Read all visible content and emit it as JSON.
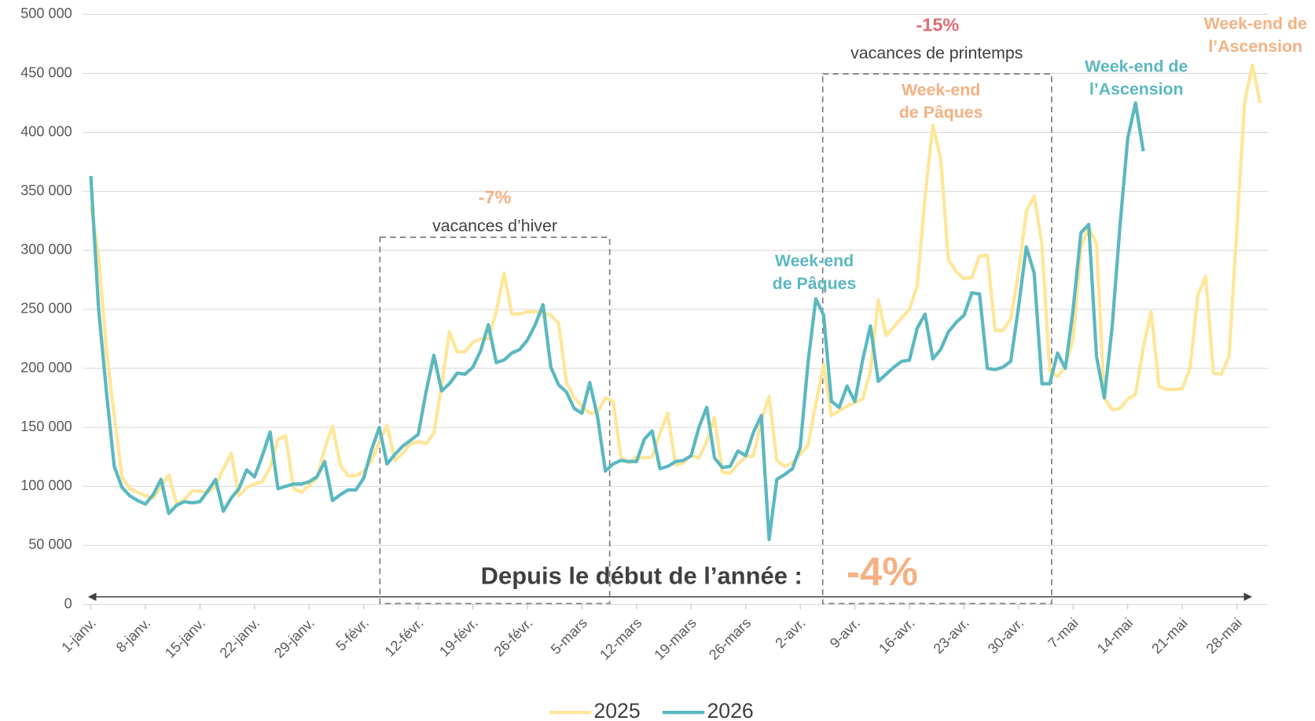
{
  "chart_data": {
    "type": "line",
    "xlim": [
      0,
      152
    ],
    "xticks": [
      {
        "value": 1,
        "label": "1-janv."
      },
      {
        "value": 8,
        "label": "8-janv."
      },
      {
        "value": 15,
        "label": "15-janv."
      },
      {
        "value": 22,
        "label": "22-janv."
      },
      {
        "value": 29,
        "label": "29-janv."
      },
      {
        "value": 36,
        "label": "5-févr."
      },
      {
        "value": 43,
        "label": "12-févr."
      },
      {
        "value": 50,
        "label": "19-févr."
      },
      {
        "value": 57,
        "label": "26-févr."
      },
      {
        "value": 64,
        "label": "5-mars"
      },
      {
        "value": 71,
        "label": "12-mars"
      },
      {
        "value": 78,
        "label": "19-mars"
      },
      {
        "value": 85,
        "label": "26-mars"
      },
      {
        "value": 92,
        "label": "2-avr."
      },
      {
        "value": 99,
        "label": "9-avr."
      },
      {
        "value": 106,
        "label": "16-avr."
      },
      {
        "value": 113,
        "label": "23-avr."
      },
      {
        "value": 120,
        "label": "30-avr."
      },
      {
        "value": 127,
        "label": "7-mai"
      },
      {
        "value": 134,
        "label": "14-mai"
      },
      {
        "value": 141,
        "label": "21-mai"
      },
      {
        "value": 148,
        "label": "28-mai"
      }
    ],
    "ylim": [
      0,
      500000
    ],
    "yticks": [
      {
        "value": 0,
        "label": "0"
      },
      {
        "value": 50000,
        "label": "50 000"
      },
      {
        "value": 100000,
        "label": "100 000"
      },
      {
        "value": 150000,
        "label": "150 000"
      },
      {
        "value": 200000,
        "label": "200 000"
      },
      {
        "value": 250000,
        "label": "250 000"
      },
      {
        "value": 300000,
        "label": "300 000"
      },
      {
        "value": 350000,
        "label": "350 000"
      },
      {
        "value": 400000,
        "label": "400 000"
      },
      {
        "value": 450000,
        "label": "450 000"
      },
      {
        "value": 500000,
        "label": "500 000"
      }
    ],
    "grid": true,
    "series": [
      {
        "name": "2025",
        "color": "#ffe699",
        "x": [
          1,
          2,
          3,
          4,
          5,
          6,
          7,
          8,
          9,
          10,
          11,
          12,
          13,
          14,
          15,
          16,
          17,
          18,
          19,
          20,
          21,
          22,
          23,
          24,
          25,
          26,
          27,
          28,
          29,
          30,
          31,
          32,
          33,
          34,
          35,
          36,
          37,
          38,
          39,
          40,
          41,
          42,
          43,
          44,
          45,
          46,
          47,
          48,
          49,
          50,
          51,
          52,
          53,
          54,
          55,
          56,
          57,
          58,
          59,
          60,
          61,
          62,
          63,
          64,
          65,
          66,
          67,
          68,
          69,
          70,
          71,
          72,
          73,
          74,
          75,
          76,
          77,
          78,
          79,
          80,
          81,
          82,
          83,
          84,
          85,
          86,
          87,
          88,
          89,
          90,
          91,
          92,
          93,
          94,
          95,
          96,
          97,
          98,
          99,
          100,
          101,
          102,
          103,
          104,
          105,
          106,
          107,
          108,
          109,
          110,
          111,
          112,
          113,
          114,
          115,
          116,
          117,
          118,
          119,
          120,
          121,
          122,
          123,
          124,
          125,
          126,
          127,
          128,
          129,
          130,
          131,
          132,
          133,
          134,
          135,
          136,
          137,
          138,
          139,
          140,
          141,
          142,
          143,
          144,
          145,
          146,
          147,
          148,
          149,
          150,
          151
        ],
        "values": [
          338000,
          295000,
          215000,
          160000,
          108000,
          98000,
          95000,
          92000,
          90000,
          100000,
          110000,
          85000,
          89000,
          96000,
          96000,
          95000,
          100000,
          115000,
          128000,
          92000,
          99000,
          102000,
          104000,
          116000,
          140000,
          143000,
          98000,
          95000,
          101000,
          107000,
          132000,
          151000,
          118000,
          109000,
          109000,
          113000,
          122000,
          137000,
          152000,
          122000,
          128000,
          136000,
          138000,
          136000,
          145000,
          186000,
          231000,
          214000,
          214000,
          222000,
          225000,
          225000,
          248000,
          281000,
          246000,
          246000,
          248000,
          248000,
          247000,
          245000,
          238000,
          188000,
          175000,
          168000,
          162000,
          163000,
          175000,
          172000,
          125000,
          120000,
          125000,
          124000,
          125000,
          145000,
          162000,
          118000,
          120000,
          126000,
          124000,
          138000,
          158000,
          112000,
          111000,
          119000,
          125000,
          126000,
          156000,
          176000,
          122000,
          117000,
          120000,
          127000,
          135000,
          170000,
          203000,
          160000,
          164000,
          168000,
          171000,
          174000,
          198000,
          258000,
          228000,
          235000,
          243000,
          250000,
          270000,
          345000,
          406000,
          378000,
          292000,
          282000,
          276000,
          277000,
          295000,
          296000,
          232000,
          232000,
          242000,
          281000,
          333000,
          346000,
          305000,
          198000,
          193000,
          202000,
          225000,
          302000,
          320000,
          305000,
          175000,
          165000,
          166000,
          174000,
          178000,
          218000,
          248000,
          185000,
          182000,
          182000,
          183000,
          200000,
          262000,
          278000,
          196000,
          195000,
          210000,
          318000,
          426000,
          457000,
          425000
        ]
      },
      {
        "name": "2026",
        "color": "#5bb8c0",
        "x": [
          1,
          2,
          3,
          4,
          5,
          6,
          7,
          8,
          9,
          10,
          11,
          12,
          13,
          14,
          15,
          16,
          17,
          18,
          19,
          20,
          21,
          22,
          23,
          24,
          25,
          26,
          27,
          28,
          29,
          30,
          31,
          32,
          33,
          34,
          35,
          36,
          37,
          38,
          39,
          40,
          41,
          42,
          43,
          44,
          45,
          46,
          47,
          48,
          49,
          50,
          51,
          52,
          53,
          54,
          55,
          56,
          57,
          58,
          59,
          60,
          61,
          62,
          63,
          64,
          65,
          66,
          67,
          68,
          69,
          70,
          71,
          72,
          73,
          74,
          75,
          76,
          77,
          78,
          79,
          80,
          81,
          82,
          83,
          84,
          85,
          86,
          87,
          88,
          89,
          90,
          91,
          92,
          93,
          94,
          95,
          96,
          97,
          98,
          99,
          100,
          101,
          102,
          103,
          104,
          105,
          106,
          107,
          108,
          109,
          110,
          111,
          112,
          113,
          114,
          115,
          116,
          117,
          118,
          119,
          120,
          121,
          122,
          123,
          124,
          125,
          126,
          127,
          128,
          129,
          130,
          131,
          132,
          133,
          134,
          135,
          136
        ],
        "values": [
          363000,
          250000,
          180000,
          117000,
          99000,
          92000,
          88000,
          85000,
          93000,
          106000,
          77000,
          84000,
          87000,
          86000,
          87000,
          96000,
          106000,
          79000,
          90000,
          98000,
          114000,
          108000,
          126000,
          146000,
          98000,
          100000,
          102000,
          102000,
          104000,
          108000,
          121000,
          88000,
          93000,
          97000,
          97000,
          107000,
          131000,
          150000,
          119000,
          127000,
          134000,
          139000,
          144000,
          180000,
          211000,
          181000,
          187000,
          196000,
          195000,
          201000,
          215000,
          237000,
          205000,
          207000,
          213000,
          216000,
          224000,
          237000,
          254000,
          201000,
          186000,
          180000,
          166000,
          162000,
          188000,
          159000,
          113000,
          119000,
          122000,
          121000,
          121000,
          140000,
          147000,
          115000,
          117000,
          121000,
          122000,
          126000,
          150000,
          167000,
          124000,
          116000,
          117000,
          130000,
          126000,
          146000,
          160000,
          55000,
          106000,
          110000,
          115000,
          133000,
          205000,
          259000,
          245000,
          172000,
          167000,
          185000,
          172000,
          207000,
          236000,
          189000,
          195000,
          201000,
          206000,
          207000,
          234000,
          246000,
          208000,
          216000,
          231000,
          239000,
          245000,
          264000,
          263000,
          200000,
          199000,
          201000,
          206000,
          252000,
          303000,
          281000,
          187000,
          187000,
          213000,
          200000,
          250000,
          315000,
          322000,
          210000,
          175000,
          235000,
          320000,
          395000,
          425000,
          384000
        ]
      }
    ],
    "annotations": [
      {
        "lines": [
          "-7%"
        ],
        "color": "#f4b183",
        "bold": true
      },
      {
        "lines": [
          "vacances d’hiver"
        ],
        "color": "#404040",
        "bold": false
      },
      {
        "lines": [
          "-15%"
        ],
        "color": "#e06c75",
        "bold": true
      },
      {
        "lines": [
          "vacances de printemps"
        ],
        "color": "#404040",
        "bold": false
      },
      {
        "lines": [
          "Week-end",
          "de Pâques"
        ],
        "color": "#f4b183",
        "bold": true
      },
      {
        "lines": [
          "Week-end",
          "de Pâques"
        ],
        "color": "#5bb8c0",
        "bold": true
      },
      {
        "lines": [
          "Week-end de",
          "l’Ascension"
        ],
        "color": "#5bb8c0",
        "bold": true
      },
      {
        "lines": [
          "Week-end de",
          "l’Ascension"
        ],
        "color": "#f4b183",
        "bold": true
      },
      {
        "lines": [
          "Depuis le début de l’année :"
        ],
        "color": "#404040",
        "bold": true
      },
      {
        "lines": [
          "-4%"
        ],
        "color": "#f4b183",
        "bold": true
      }
    ]
  }
}
